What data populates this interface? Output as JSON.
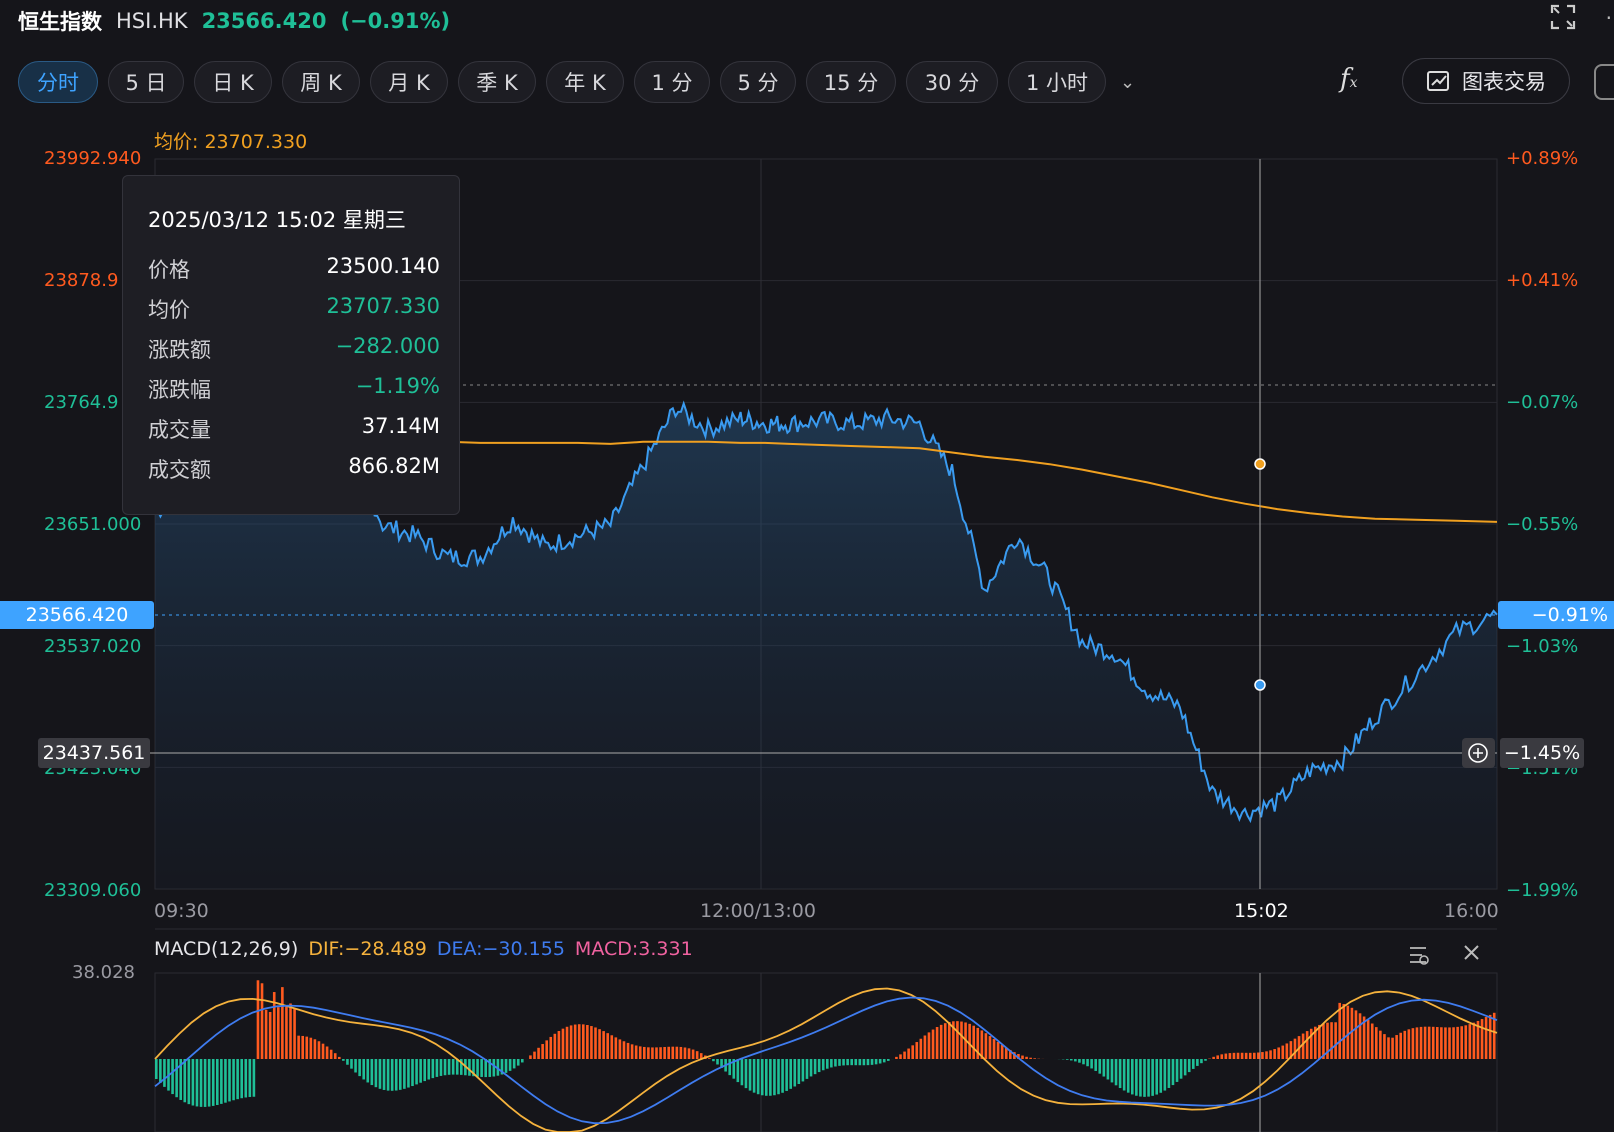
{
  "header": {
    "name": "恒生指数",
    "symbol": "HSI.HK",
    "price": "23566.420",
    "change_pct": "(−0.91%)"
  },
  "toolbar": {
    "tabs": [
      "分时",
      "5 日",
      "日 K",
      "周 K",
      "月 K",
      "季 K",
      "年 K",
      "1 分",
      "5 分",
      "15 分",
      "30 分",
      "1 小时"
    ],
    "active_tab": "分时",
    "trade_label": "图表交易"
  },
  "avg_label": "均价: 23707.330",
  "y_axis_left": [
    "23992.940",
    "23878.9",
    "23764.9",
    "23651.000",
    "23537.020",
    "23423.040",
    "23309.060"
  ],
  "y_axis_right": [
    "+0.89%",
    "+0.41%",
    "−0.07%",
    "−0.55%",
    "−1.03%",
    "−1.51%",
    "−1.99%"
  ],
  "current_price_tag": "23566.420",
  "current_pct_tag": "−0.91%",
  "crosshair_price_tag": "23437.561",
  "crosshair_pct_tag": "−1.45%",
  "x_axis": [
    "09:30",
    "12:00/13:00",
    "15:02",
    "16:00"
  ],
  "tooltip": {
    "datetime": "2025/03/12 15:02 星期三",
    "rows": [
      {
        "label": "价格",
        "value": "23500.140",
        "green": false
      },
      {
        "label": "均价",
        "value": "23707.330",
        "green": true
      },
      {
        "label": "涨跌额",
        "value": "−282.000",
        "green": true
      },
      {
        "label": "涨跌幅",
        "value": "−1.19%",
        "green": true
      },
      {
        "label": "成交量",
        "value": "37.14M",
        "green": false
      },
      {
        "label": "成交额",
        "value": "866.82M",
        "green": false
      }
    ]
  },
  "macd": {
    "title": "MACD(12,26,9)",
    "dif": "DIF:−28.489",
    "dea": "DEA:−30.155",
    "macd": "MACD:3.331",
    "top_value": "38.028"
  },
  "colors": {
    "bg": "#15151a",
    "price_line": "#3a9bf0",
    "avg_line": "#f0a020",
    "green": "#1fbf97",
    "red": "#ff5a1f",
    "macd_up": "#ff5a1f",
    "macd_down": "#1fbf97",
    "dif": "#f5b23d",
    "dea": "#3f7cf0",
    "macd_label": "#f062a0"
  },
  "chart_data": {
    "type": "line",
    "y_range": [
      23309.06,
      23992.94
    ],
    "price_x_minutes": [
      0,
      8,
      16,
      24,
      32,
      40,
      48,
      56,
      64,
      72,
      80,
      88,
      96,
      104,
      112,
      120,
      128,
      136,
      144,
      150,
      156,
      164,
      172,
      180,
      188,
      196,
      204,
      212,
      220,
      228,
      236,
      244,
      252,
      260,
      268,
      276,
      284,
      292,
      300,
      310,
      320,
      330
    ],
    "price": [
      23660,
      23690,
      23740,
      23780,
      23800,
      23795,
      23720,
      23650,
      23640,
      23620,
      23620,
      23655,
      23630,
      23640,
      23650,
      23705,
      23760,
      23740,
      23750,
      23745,
      23745,
      23748,
      23745,
      23750,
      23745,
      23700,
      23590,
      23640,
      23600,
      23540,
      23530,
      23495,
      23480,
      23400,
      23380,
      23390,
      23420,
      23430,
      23470,
      23510,
      23550,
      23566
    ],
    "avg": [
      23760,
      23770,
      23775,
      23770,
      23760,
      23752,
      23742,
      23735,
      23730,
      23728,
      23727,
      23727,
      23727,
      23727,
      23726,
      23728,
      23728,
      23728,
      23727,
      23727,
      23726,
      23725,
      23724,
      23723,
      23722,
      23718,
      23714,
      23711,
      23707,
      23702,
      23696,
      23690,
      23683,
      23676,
      23670,
      23665,
      23661,
      23658,
      23656,
      23655,
      23654,
      23653
    ]
  }
}
